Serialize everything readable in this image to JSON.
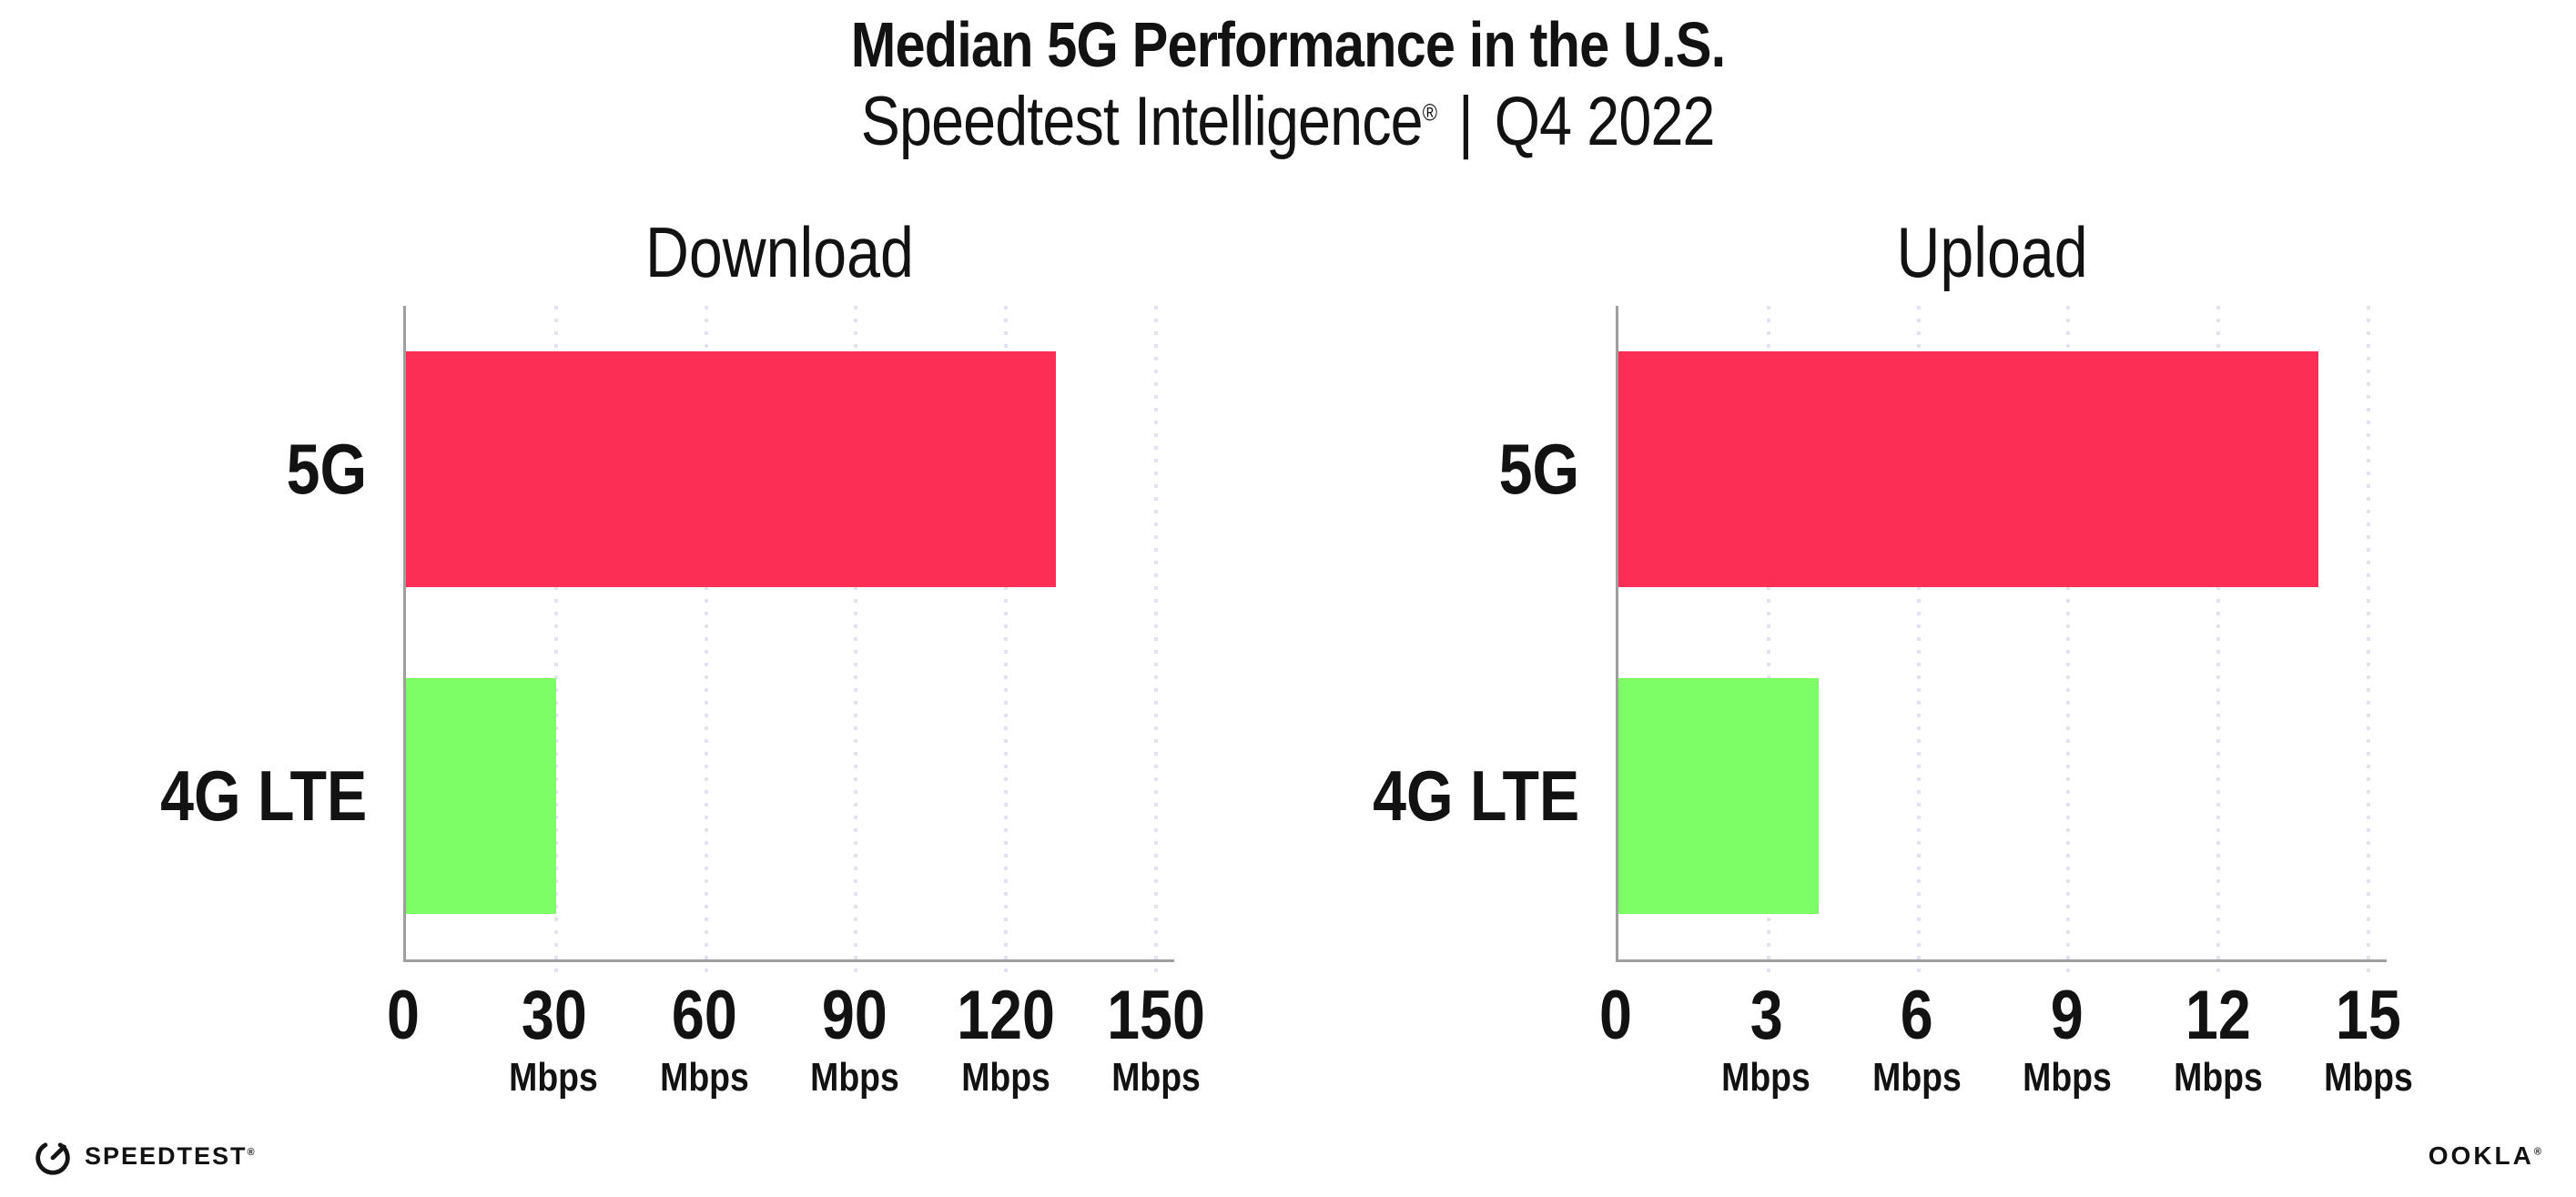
{
  "header": {
    "title": "Median 5G Performance in the U.S.",
    "subtitle_brand": "Speedtest Intelligence",
    "subtitle_reg": "®",
    "subtitle_separator": "|",
    "subtitle_period": "Q4 2022"
  },
  "chart_data": [
    {
      "type": "bar",
      "orientation": "horizontal",
      "title": "Download",
      "categories": [
        "5G",
        "4G LTE"
      ],
      "values": [
        130,
        30
      ],
      "value_unit": "Mbps",
      "xlim": [
        0,
        150
      ],
      "xticks": [
        0,
        30,
        60,
        90,
        120,
        150
      ],
      "tick_unit_label": "Mbps",
      "bar_colors": [
        "#fd2e56",
        "#7dfd66"
      ],
      "grid": "dotted-vertical"
    },
    {
      "type": "bar",
      "orientation": "horizontal",
      "title": "Upload",
      "categories": [
        "5G",
        "4G LTE"
      ],
      "values": [
        14,
        4
      ],
      "value_unit": "Mbps",
      "xlim": [
        0,
        15
      ],
      "xticks": [
        0,
        3,
        6,
        9,
        12,
        15
      ],
      "tick_unit_label": "Mbps",
      "bar_colors": [
        "#fd2e56",
        "#7dfd66"
      ],
      "grid": "dotted-vertical"
    }
  ],
  "footer": {
    "speedtest_wordmark": "SPEEDTEST",
    "speedtest_reg": "®",
    "ookla_wordmark": "OOKLA",
    "ookla_reg": "®"
  },
  "colors": {
    "bar_5g": "#fd2e56",
    "bar_4g_lte": "#7dfd66",
    "axis": "#9e9e9e",
    "gridline": "#e3e3ef",
    "text": "#121212"
  }
}
